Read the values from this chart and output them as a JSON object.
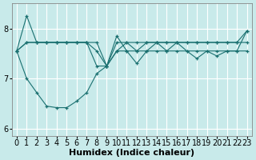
{
  "bg_color": "#c8eaea",
  "grid_color": "#ffffff",
  "line_color": "#1a7070",
  "marker": "+",
  "xlabel": "Humidex (Indice chaleur)",
  "xlabel_fontsize": 8,
  "tick_fontsize": 7,
  "xlim": [
    -0.5,
    23.5
  ],
  "ylim": [
    5.85,
    8.5
  ],
  "yticks": [
    6,
    7,
    8
  ],
  "xticks": [
    0,
    1,
    2,
    3,
    4,
    5,
    6,
    7,
    8,
    9,
    10,
    11,
    12,
    13,
    14,
    15,
    16,
    17,
    18,
    19,
    20,
    21,
    22,
    23
  ],
  "s1": [
    7.55,
    8.25,
    7.72,
    7.72,
    7.72,
    7.72,
    7.72,
    7.72,
    7.72,
    7.25,
    7.72,
    7.72,
    7.72,
    7.72,
    7.72,
    7.72,
    7.72,
    7.72,
    7.72,
    7.72,
    7.72,
    7.72,
    7.72,
    7.72
  ],
  "s2": [
    7.55,
    7.72,
    7.72,
    7.72,
    7.72,
    7.72,
    7.72,
    7.72,
    7.55,
    7.25,
    7.55,
    7.72,
    7.55,
    7.72,
    7.72,
    7.72,
    7.72,
    7.72,
    7.72,
    7.72,
    7.72,
    7.72,
    7.72,
    7.95
  ],
  "s3": [
    7.55,
    7.72,
    7.72,
    7.72,
    7.72,
    7.72,
    7.72,
    7.72,
    7.25,
    7.25,
    7.85,
    7.55,
    7.3,
    7.55,
    7.72,
    7.55,
    7.72,
    7.55,
    7.4,
    7.55,
    7.45,
    7.55,
    7.55,
    7.95
  ],
  "s4": [
    7.55,
    7.0,
    6.72,
    6.45,
    6.42,
    6.42,
    6.55,
    6.72,
    7.1,
    7.25,
    7.55,
    7.55,
    7.55,
    7.55,
    7.55,
    7.55,
    7.55,
    7.55,
    7.55,
    7.55,
    7.55,
    7.55,
    7.55,
    7.55
  ]
}
